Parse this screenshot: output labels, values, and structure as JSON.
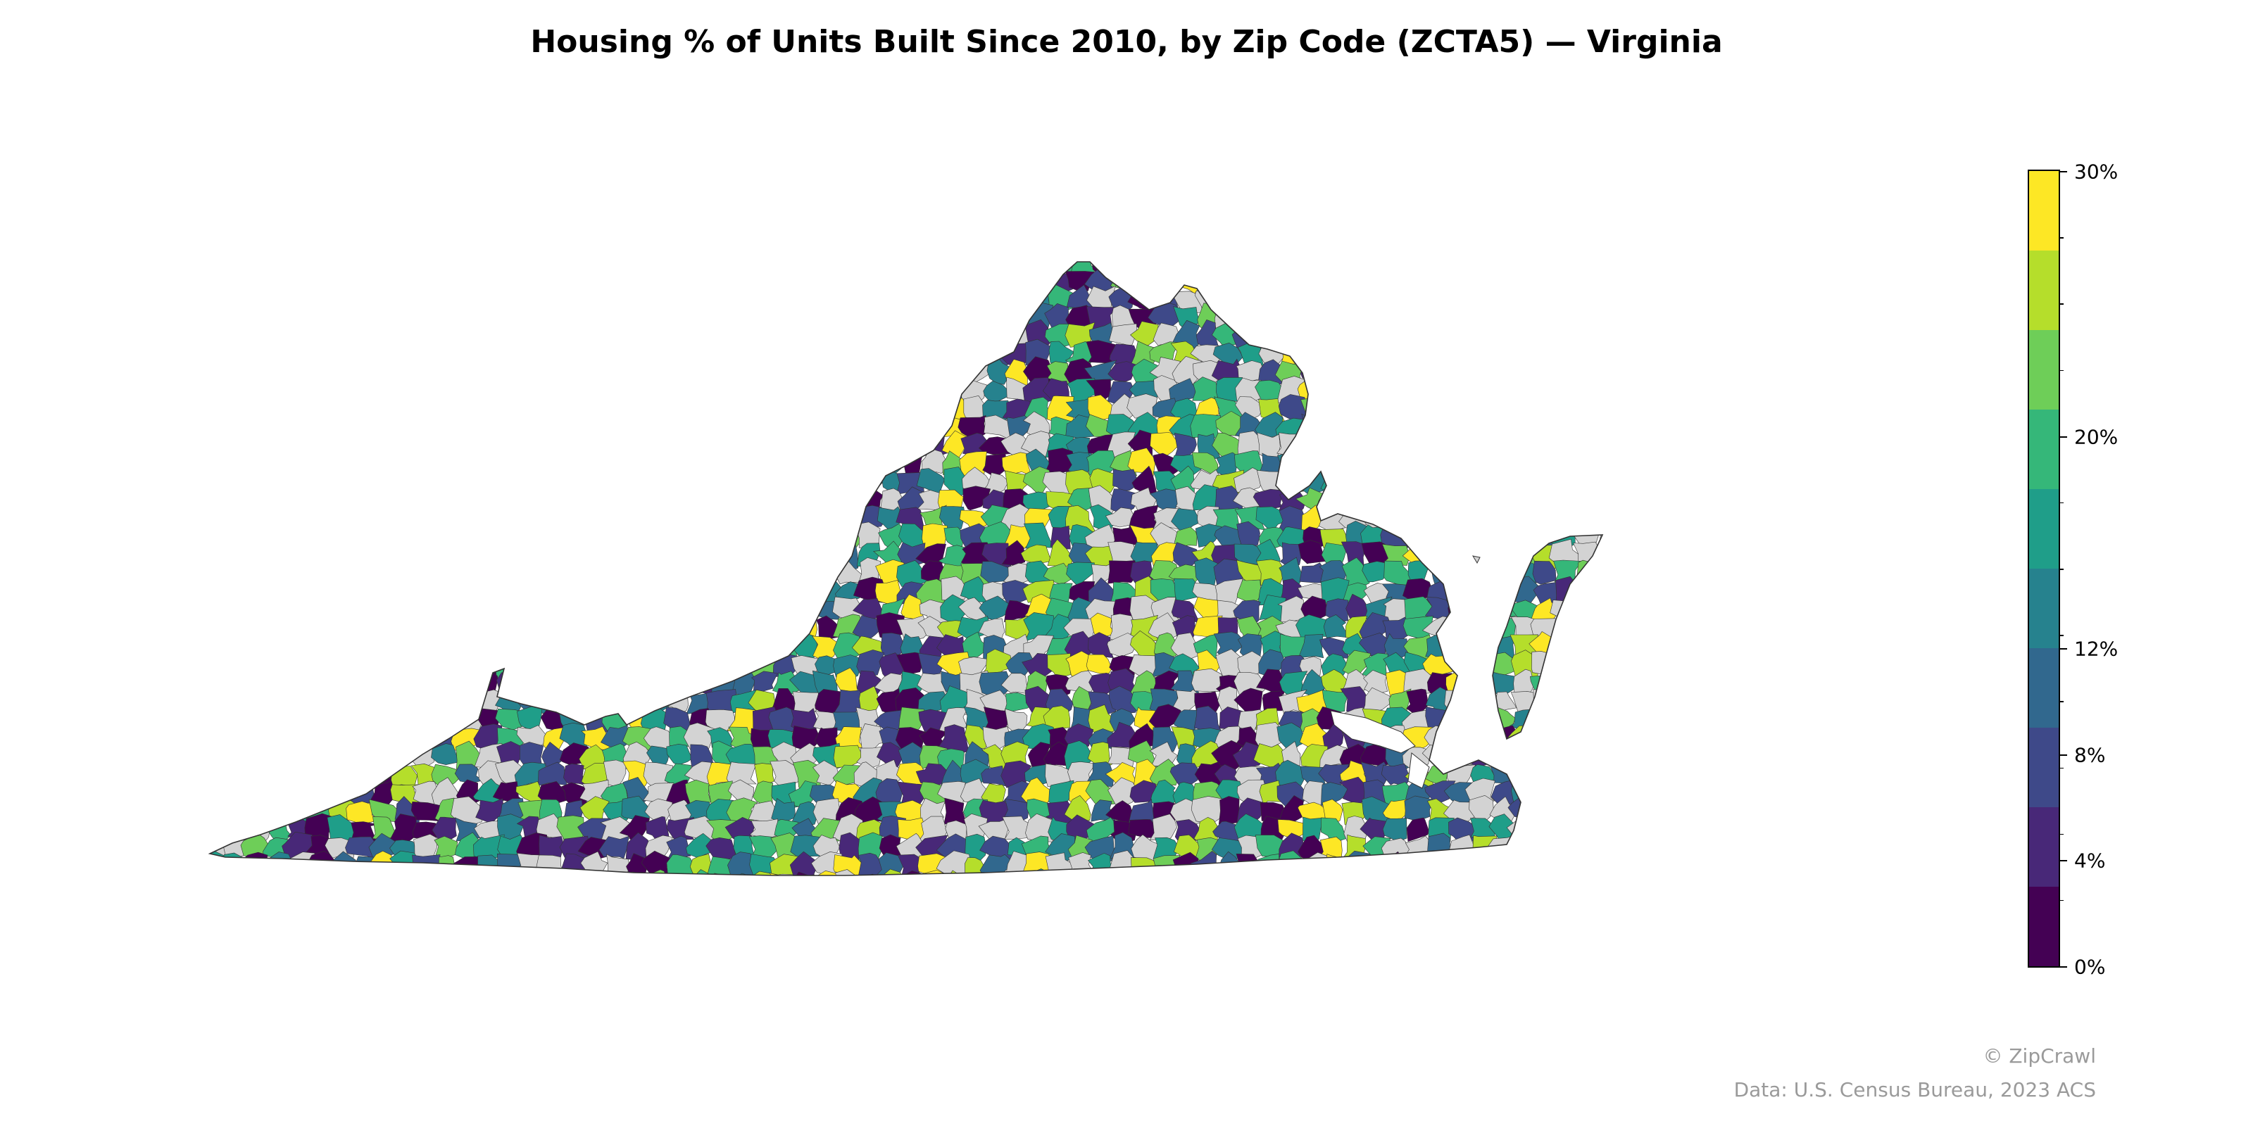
{
  "title": "Housing % of Units Built Since 2010, by Zip Code (ZCTA5) — Virginia",
  "map": {
    "region": "Virginia",
    "geography": "ZCTA5",
    "no_data_color": "#d3d3d3",
    "border_color": "#333333"
  },
  "legend": {
    "type": "colorbar",
    "min": 0,
    "max": 30,
    "bin_edges": [
      0,
      2.5,
      5,
      7.5,
      10,
      12.5,
      15,
      17.5,
      20,
      22.5,
      25,
      27.5,
      30
    ],
    "colors": [
      "#440154",
      "#482878",
      "#3e4989",
      "#31688e",
      "#26828e",
      "#1f9e89",
      "#35b779",
      "#6ece58",
      "#b5de2b",
      "#fde725"
    ],
    "tick_labels": [
      {
        "value": 0,
        "label": "0%"
      },
      {
        "value": 4,
        "label": "4%"
      },
      {
        "value": 8,
        "label": "8%"
      },
      {
        "value": 12,
        "label": "12%"
      },
      {
        "value": 20,
        "label": "20%"
      },
      {
        "value": 30,
        "label": "30%"
      }
    ]
  },
  "credits": {
    "brand": "© ZipCrawl",
    "source": "Data: U.S. Census Bureau, 2023 ACS"
  }
}
